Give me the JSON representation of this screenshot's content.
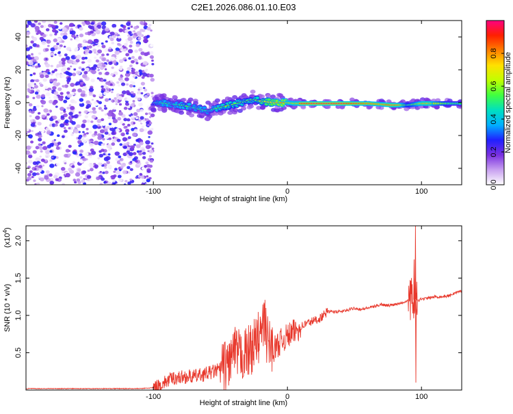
{
  "title": "C2E1.2026.086.01.10.E03",
  "chart_data": [
    {
      "type": "heatmap",
      "title": "C2E1.2026.086.01.10.E03",
      "xlabel": "Height of straight line (km)",
      "ylabel": "Frequency (Hz)",
      "xlim": [
        -195,
        130
      ],
      "ylim": [
        -50,
        50
      ],
      "xticks": [
        -100,
        0,
        100
      ],
      "xtick_labels": [
        "-100",
        "0",
        "100"
      ],
      "yticks": [
        40,
        20,
        0,
        -20,
        -40
      ],
      "ytick_labels": [
        "40",
        "20",
        "0",
        "-20",
        "-40"
      ],
      "colorbar": {
        "label": "Normalized spectral amplitude",
        "range": [
          0,
          1
        ],
        "ticks": [
          0.0,
          0.2,
          0.4,
          0.6,
          0.8
        ],
        "tick_labels": [
          "0.0",
          "0.2",
          "0.4",
          "0.6",
          "0.8"
        ],
        "colors": [
          "#ffffff",
          "#c8a0f0",
          "#7a30e0",
          "#2020ff",
          "#00b0ff",
          "#00e0c0",
          "#40ff40",
          "#c0ff00",
          "#ffe000",
          "#ff8000",
          "#ff2000",
          "#ff0080"
        ]
      },
      "noise_region_x": [
        -195,
        -100
      ],
      "ridge": [
        {
          "x": -100,
          "y": 0.0,
          "a": 0.35
        },
        {
          "x": -95,
          "y": 0.0,
          "a": 0.45
        },
        {
          "x": -90,
          "y": -0.5,
          "a": 0.5
        },
        {
          "x": -85,
          "y": -1.0,
          "a": 0.45
        },
        {
          "x": -80,
          "y": -1.5,
          "a": 0.5
        },
        {
          "x": -75,
          "y": -2.0,
          "a": 0.55
        },
        {
          "x": -70,
          "y": -3.0,
          "a": 0.45
        },
        {
          "x": -65,
          "y": -4.0,
          "a": 0.5
        },
        {
          "x": -60,
          "y": -5.0,
          "a": 0.45
        },
        {
          "x": -55,
          "y": -4.0,
          "a": 0.5
        },
        {
          "x": -50,
          "y": -3.0,
          "a": 0.55
        },
        {
          "x": -45,
          "y": -2.0,
          "a": 0.6
        },
        {
          "x": -40,
          "y": -1.0,
          "a": 0.6
        },
        {
          "x": -35,
          "y": 0.0,
          "a": 0.55
        },
        {
          "x": -30,
          "y": 1.0,
          "a": 0.6
        },
        {
          "x": -25,
          "y": 2.0,
          "a": 0.55
        },
        {
          "x": -20,
          "y": 1.0,
          "a": 0.65
        },
        {
          "x": -15,
          "y": 0.5,
          "a": 0.7
        },
        {
          "x": -10,
          "y": 0.0,
          "a": 0.75
        },
        {
          "x": -5,
          "y": 0.0,
          "a": 0.8
        },
        {
          "x": 0,
          "y": 0.0,
          "a": 0.8
        },
        {
          "x": 5,
          "y": -0.5,
          "a": 0.85
        },
        {
          "x": 10,
          "y": -0.5,
          "a": 0.9
        },
        {
          "x": 20,
          "y": -0.5,
          "a": 0.95
        },
        {
          "x": 30,
          "y": -0.5,
          "a": 0.95
        },
        {
          "x": 40,
          "y": -0.5,
          "a": 0.95
        },
        {
          "x": 50,
          "y": -0.5,
          "a": 0.9
        },
        {
          "x": 60,
          "y": -0.5,
          "a": 0.85
        },
        {
          "x": 70,
          "y": -1.0,
          "a": 0.8
        },
        {
          "x": 78,
          "y": -1.5,
          "a": 0.95
        },
        {
          "x": 85,
          "y": -1.5,
          "a": 0.85
        },
        {
          "x": 90,
          "y": -1.5,
          "a": 0.6
        },
        {
          "x": 95,
          "y": -1.0,
          "a": 0.7
        },
        {
          "x": 100,
          "y": -0.5,
          "a": 0.85
        },
        {
          "x": 105,
          "y": -0.5,
          "a": 0.95
        },
        {
          "x": 110,
          "y": -0.5,
          "a": 0.75
        },
        {
          "x": 120,
          "y": -0.5,
          "a": 0.55
        },
        {
          "x": 130,
          "y": -0.5,
          "a": 0.5
        }
      ]
    },
    {
      "type": "line",
      "xlabel": "Height of straight line (km)",
      "ylabel": "SNR (10 * v/v)",
      "y_multiplier_label": "(x10",
      "y_multiplier_exp": "4",
      "y_multiplier_close": ")",
      "xlim": [
        -195,
        130
      ],
      "ylim": [
        0,
        2.2
      ],
      "xticks": [
        -100,
        0,
        100
      ],
      "xtick_labels": [
        "-100",
        "0",
        "100"
      ],
      "yticks": [
        0.5,
        1.0,
        1.5,
        2.0
      ],
      "ytick_labels": [
        "0.5",
        "1.0",
        "1.5",
        "2.0"
      ],
      "color": "#e8382c",
      "series": [
        {
          "name": "SNR",
          "points": [
            [
              -195,
              0.02
            ],
            [
              -150,
              0.02
            ],
            [
              -110,
              0.02
            ],
            [
              -100,
              0.03
            ],
            [
              -95,
              0.06
            ],
            [
              -90,
              0.12
            ],
            [
              -85,
              0.16
            ],
            [
              -80,
              0.17
            ],
            [
              -75,
              0.18
            ],
            [
              -70,
              0.18
            ],
            [
              -65,
              0.2
            ],
            [
              -60,
              0.22
            ],
            [
              -55,
              0.25
            ],
            [
              -50,
              0.28
            ],
            [
              -45,
              0.33
            ],
            [
              -40,
              0.5
            ],
            [
              -35,
              0.45
            ],
            [
              -30,
              0.5
            ],
            [
              -25,
              0.6
            ],
            [
              -20,
              0.75
            ],
            [
              -17,
              0.9
            ],
            [
              -15,
              0.65
            ],
            [
              -10,
              0.55
            ],
            [
              -5,
              0.65
            ],
            [
              0,
              0.72
            ],
            [
              5,
              0.78
            ],
            [
              10,
              0.85
            ],
            [
              15,
              0.9
            ],
            [
              20,
              0.93
            ],
            [
              25,
              0.97
            ],
            [
              30,
              1.05
            ],
            [
              35,
              1.05
            ],
            [
              40,
              1.05
            ],
            [
              45,
              1.07
            ],
            [
              50,
              1.1
            ],
            [
              55,
              1.08
            ],
            [
              60,
              1.1
            ],
            [
              65,
              1.12
            ],
            [
              70,
              1.15
            ],
            [
              75,
              1.13
            ],
            [
              80,
              1.15
            ],
            [
              85,
              1.17
            ],
            [
              90,
              1.2
            ],
            [
              93,
              1.25
            ],
            [
              95,
              1.2
            ],
            [
              97,
              1.2
            ],
            [
              100,
              1.22
            ],
            [
              105,
              1.23
            ],
            [
              110,
              1.25
            ],
            [
              115,
              1.25
            ],
            [
              120,
              1.26
            ],
            [
              125,
              1.3
            ],
            [
              130,
              1.33
            ]
          ]
        }
      ],
      "spikes": [
        {
          "x": 95.5,
          "y": 2.2
        },
        {
          "x": 95.8,
          "y": 0.1
        },
        {
          "x": 94.5,
          "y": 1.75
        },
        {
          "x": 96.5,
          "y": 1.45
        },
        {
          "x": -16,
          "y": 1.1
        },
        {
          "x": -42,
          "y": 0.6
        },
        {
          "x": -20,
          "y": 0.95
        }
      ]
    }
  ]
}
